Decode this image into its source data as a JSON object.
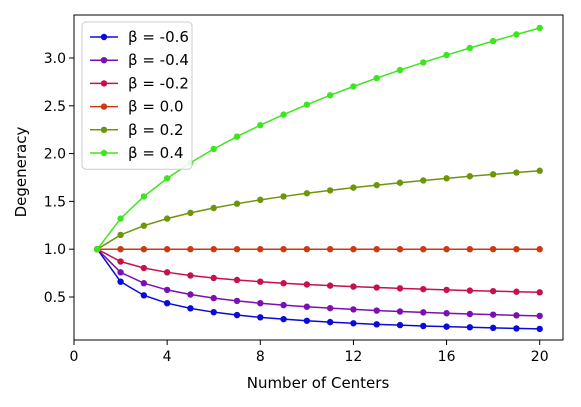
{
  "chart_data": {
    "type": "line",
    "xlabel": "Number of Centers",
    "ylabel": "Degeneracy",
    "xlim": [
      0,
      21
    ],
    "ylim": [
      0.05,
      3.45
    ],
    "xticks": [
      0,
      4,
      8,
      12,
      16,
      20
    ],
    "xtick_labels": [
      "0",
      "4",
      "8",
      "12",
      "16",
      "20"
    ],
    "yticks": [
      0.5,
      1.0,
      1.5,
      2.0,
      2.5,
      3.0
    ],
    "ytick_labels": [
      "0.5",
      "1.0",
      "1.5",
      "2.0",
      "2.5",
      "3.0"
    ],
    "grid": false,
    "legend_position": "top-left",
    "x": [
      1,
      2,
      3,
      4,
      5,
      6,
      7,
      8,
      9,
      10,
      11,
      12,
      13,
      14,
      15,
      16,
      17,
      18,
      19,
      20
    ],
    "series": [
      {
        "name": "β = -0.6",
        "color": "#0a0adc",
        "values": [
          1.0,
          0.66,
          0.517,
          0.435,
          0.381,
          0.341,
          0.311,
          0.287,
          0.268,
          0.251,
          0.237,
          0.225,
          0.214,
          0.206,
          0.197,
          0.19,
          0.183,
          0.177,
          0.171,
          0.166
        ]
      },
      {
        "name": "β = -0.4",
        "color": "#7a10b4",
        "values": [
          1.0,
          0.758,
          0.644,
          0.574,
          0.526,
          0.488,
          0.459,
          0.435,
          0.415,
          0.398,
          0.383,
          0.37,
          0.358,
          0.348,
          0.339,
          0.33,
          0.322,
          0.315,
          0.308,
          0.302
        ]
      },
      {
        "name": "β = -0.2",
        "color": "#c8104a",
        "values": [
          1.0,
          0.871,
          0.803,
          0.758,
          0.725,
          0.699,
          0.678,
          0.66,
          0.644,
          0.631,
          0.619,
          0.609,
          0.599,
          0.59,
          0.582,
          0.574,
          0.567,
          0.561,
          0.555,
          0.549
        ]
      },
      {
        "name": "β = 0.0",
        "color": "#cc3a10",
        "values": [
          1,
          1,
          1,
          1,
          1,
          1,
          1,
          1,
          1,
          1,
          1,
          1,
          1,
          1,
          1,
          1,
          1,
          1,
          1,
          1
        ]
      },
      {
        "name": "β = 0.2",
        "color": "#6e960a",
        "values": [
          1.0,
          1.149,
          1.246,
          1.32,
          1.38,
          1.431,
          1.476,
          1.516,
          1.552,
          1.585,
          1.615,
          1.644,
          1.67,
          1.695,
          1.719,
          1.741,
          1.763,
          1.783,
          1.802,
          1.821
        ]
      },
      {
        "name": "β = 0.4",
        "color": "#3ce61e",
        "values": [
          1.0,
          1.32,
          1.552,
          1.741,
          1.904,
          2.048,
          2.178,
          2.297,
          2.408,
          2.512,
          2.61,
          2.702,
          2.79,
          2.874,
          2.954,
          3.031,
          3.105,
          3.177,
          3.246,
          3.314
        ]
      }
    ]
  }
}
